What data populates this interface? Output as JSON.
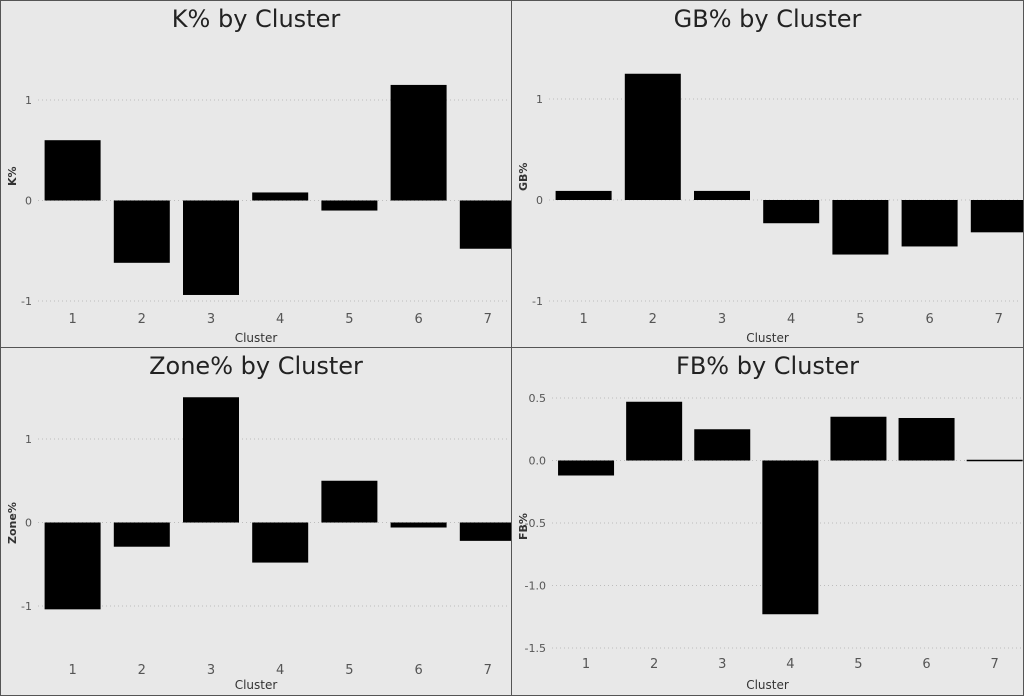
{
  "chart_data": [
    {
      "type": "bar",
      "title": "K% by Cluster",
      "xlabel": "Cluster",
      "ylabel": "K%",
      "categories": [
        "1",
        "2",
        "3",
        "4",
        "5",
        "6",
        "7"
      ],
      "values": [
        0.6,
        -0.62,
        -0.94,
        0.08,
        -0.1,
        1.15,
        -0.48
      ],
      "yticks": [
        -1,
        0,
        1
      ],
      "ytick_labels": [
        "-1",
        "0",
        "1"
      ],
      "ylim": [
        -1.0,
        1.5
      ],
      "grid": true,
      "legend": "none",
      "bar_color": "#000000"
    },
    {
      "type": "bar",
      "title": "GB% by Cluster",
      "xlabel": "Cluster",
      "ylabel": "GB%",
      "categories": [
        "1",
        "2",
        "3",
        "4",
        "5",
        "6",
        "7"
      ],
      "values": [
        0.09,
        1.25,
        0.09,
        -0.23,
        -0.54,
        -0.46,
        -0.32
      ],
      "yticks": [
        -1,
        0,
        1
      ],
      "ytick_labels": [
        "-1",
        "0",
        "1"
      ],
      "ylim": [
        -1.0,
        1.5
      ],
      "grid": true,
      "legend": "none",
      "bar_color": "#000000"
    },
    {
      "type": "bar",
      "title": "Zone% by Cluster",
      "xlabel": "Cluster",
      "ylabel": "Zone%",
      "categories": [
        "1",
        "2",
        "3",
        "4",
        "5",
        "6",
        "7"
      ],
      "values": [
        -1.04,
        -0.29,
        1.5,
        -0.48,
        0.5,
        -0.06,
        -0.22
      ],
      "yticks": [
        -1,
        0,
        1
      ],
      "ytick_labels": [
        "-1",
        "0",
        "1"
      ],
      "ylim": [
        -1.0,
        1.5
      ],
      "grid": true,
      "legend": "none",
      "bar_color": "#000000"
    },
    {
      "type": "bar",
      "title": "FB% by Cluster",
      "xlabel": "Cluster",
      "ylabel": "FB%",
      "categories": [
        "1",
        "2",
        "3",
        "4",
        "5",
        "6",
        "7"
      ],
      "values": [
        -0.12,
        0.47,
        0.25,
        -1.23,
        0.35,
        0.34,
        -0.01
      ],
      "yticks": [
        0.5,
        0.0,
        -0.5,
        -1.0,
        -1.5
      ],
      "ytick_labels": [
        "0.5",
        "0.0",
        "-0.5",
        "-1.0",
        "-1.5"
      ],
      "ylim": [
        -1.5,
        0.5
      ],
      "grid": true,
      "legend": "none",
      "bar_color": "#000000"
    }
  ]
}
